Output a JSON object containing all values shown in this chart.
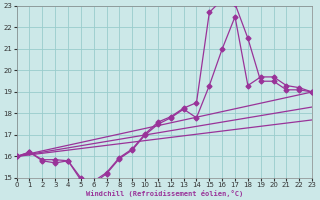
{
  "bg_color": "#cce8e8",
  "line_color": "#993399",
  "grid_color": "#99cccc",
  "xlabel": "Windchill (Refroidissement éolien,°C)",
  "xlim": [
    0,
    23
  ],
  "ylim": [
    15,
    23
  ],
  "yticks": [
    15,
    16,
    17,
    18,
    19,
    20,
    21,
    22,
    23
  ],
  "xticks": [
    0,
    1,
    2,
    3,
    4,
    5,
    6,
    7,
    8,
    9,
    10,
    11,
    12,
    13,
    14,
    15,
    16,
    17,
    18,
    19,
    20,
    21,
    22,
    23
  ],
  "series_marked": [
    {
      "x": [
        0,
        1,
        2,
        3,
        4,
        5,
        6,
        7,
        8,
        9,
        10,
        11,
        12,
        13,
        14,
        15,
        16,
        17,
        18,
        19,
        20,
        21,
        22,
        23
      ],
      "y": [
        16.0,
        16.2,
        15.8,
        15.7,
        15.8,
        14.9,
        14.75,
        15.2,
        15.9,
        16.3,
        17.0,
        17.5,
        17.8,
        18.2,
        17.8,
        19.3,
        21.0,
        22.5,
        19.3,
        19.7,
        19.7,
        19.3,
        19.2,
        19.0
      ]
    },
    {
      "x": [
        0,
        1,
        2,
        3,
        4,
        5,
        6,
        7,
        8,
        9,
        10,
        11,
        12,
        13,
        14,
        15,
        16,
        17,
        18,
        19,
        20,
        21,
        22,
        23
      ],
      "y": [
        16.0,
        16.2,
        15.85,
        15.85,
        15.8,
        15.0,
        14.85,
        15.25,
        15.95,
        16.35,
        17.05,
        17.6,
        17.85,
        18.25,
        18.5,
        22.7,
        23.3,
        23.1,
        21.5,
        19.5,
        19.5,
        19.1,
        19.1,
        19.0
      ]
    }
  ],
  "series_lines": [
    {
      "x": [
        0,
        23
      ],
      "y": [
        16.0,
        19.0
      ]
    },
    {
      "x": [
        0,
        23
      ],
      "y": [
        16.0,
        18.3
      ]
    },
    {
      "x": [
        0,
        23
      ],
      "y": [
        16.0,
        17.7
      ]
    }
  ]
}
